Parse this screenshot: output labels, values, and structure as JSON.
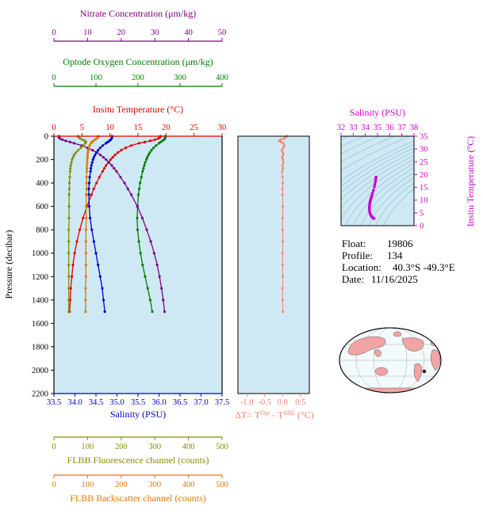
{
  "colors": {
    "nitrate": "#800080",
    "oxygen": "#007d00",
    "temperature": "#e00000",
    "salinity": "#0000cd",
    "fluorescence": "#8b8b00",
    "backscatter": "#e07800",
    "delta": "#f5826e",
    "magenta": "#d100d1",
    "black": "#000000",
    "plot_bg": "#cfe9f4",
    "contour": "#94bfce",
    "map_land": "#f2a3a3",
    "map_ocean": "#f3fafc",
    "map_graticule": "#a8a8a8",
    "map_marker": "#202020"
  },
  "axes": {
    "nitrate": {
      "title": "Nitrate Concentration (μm/kg)",
      "ticks": [
        0,
        10,
        20,
        30,
        40,
        50
      ],
      "range": [
        0,
        50
      ],
      "decimals": 0
    },
    "oxygen": {
      "title": "Optode Oxygen Concentration (μm/kg)",
      "ticks": [
        0,
        100,
        200,
        300,
        400
      ],
      "range": [
        0,
        400
      ],
      "decimals": 0
    },
    "temperature": {
      "title": "Insitu Temperature (°C)",
      "ticks": [
        0,
        5,
        10,
        15,
        20,
        25,
        30
      ],
      "range": [
        0,
        30
      ],
      "decimals": 0
    },
    "salinity": {
      "title": "Salinity (PSU)",
      "ticks": [
        33.5,
        34,
        34.5,
        35,
        35.5,
        36,
        36.5,
        37,
        37.5
      ],
      "range": [
        33.5,
        37.5
      ],
      "decimals": 1
    },
    "fluorescence": {
      "title": "FLBB Fluorescence channel (counts)",
      "ticks": [
        0,
        100,
        200,
        300,
        400,
        500
      ],
      "range": [
        0,
        500
      ],
      "decimals": 0
    },
    "backscatter": {
      "title": "FLBB Backscatter channel (counts)",
      "ticks": [
        0,
        100,
        200,
        300,
        400,
        500
      ],
      "range": [
        0,
        500
      ],
      "decimals": 0
    },
    "pressure": {
      "title": "Pressure (decibar)",
      "ticks": [
        0,
        200,
        400,
        600,
        800,
        1000,
        1200,
        1400,
        1600,
        1800,
        2000,
        2200
      ],
      "range": [
        0,
        2200
      ],
      "decimals": 0
    }
  },
  "delta_axis": {
    "label_parts": [
      "ΔT= T",
      "Opt",
      " - T",
      "SBE",
      " (°C)"
    ],
    "ticks": [
      -1.0,
      -0.5,
      0.0,
      0.5
    ],
    "range": [
      -1.25,
      0.75
    ],
    "decimals": 1
  },
  "ts_panel": {
    "x_title": "Salinity (PSU)",
    "x_ticks": [
      32,
      33,
      34,
      35,
      36,
      37,
      38
    ],
    "x_range": [
      32,
      38
    ],
    "y_title": "Insitu Temperature (°C)",
    "y_ticks": [
      0,
      5,
      10,
      15,
      20,
      25,
      30,
      35
    ],
    "y_range": [
      0,
      35
    ]
  },
  "info": {
    "float_label": "Float:",
    "float_value": "19806",
    "profile_label": "Profile:",
    "profile_value": "134",
    "location_label": "Location:",
    "location_value": "40.3°S  -49.3°E",
    "date_label": "Date:",
    "date_value": "11/16/2025"
  },
  "chart_data": {
    "type": "line",
    "pressure_dbar": [
      0,
      10,
      20,
      30,
      40,
      50,
      60,
      80,
      100,
      120,
      140,
      160,
      180,
      200,
      225,
      250,
      275,
      300,
      350,
      400,
      450,
      500,
      600,
      700,
      800,
      900,
      1000,
      1100,
      1200,
      1300,
      1400,
      1500
    ],
    "series": [
      {
        "name": "Insitu Temperature",
        "units": "°C",
        "axis": "temperature",
        "values": [
          19.0,
          18.9,
          18.6,
          18.0,
          17.2,
          16.2,
          15.2,
          13.8,
          12.8,
          12.0,
          11.4,
          10.9,
          10.5,
          10.1,
          9.7,
          9.3,
          9.0,
          8.7,
          8.1,
          7.6,
          7.1,
          6.7,
          5.9,
          5.2,
          4.6,
          4.1,
          3.7,
          3.4,
          3.2,
          3.0,
          2.9,
          2.8
        ]
      },
      {
        "name": "Optode Oxygen Concentration",
        "units": "μm/kg",
        "axis": "oxygen",
        "values": [
          265,
          265,
          264,
          262,
          258,
          254,
          250,
          243,
          237,
          232,
          228,
          225,
          222,
          220,
          217,
          215,
          213,
          211,
          208,
          205,
          203,
          201,
          199,
          198,
          199,
          202,
          206,
          211,
          217,
          223,
          229,
          234
        ]
      },
      {
        "name": "Nitrate Concentration",
        "units": "μm/kg",
        "axis": "nitrate",
        "values": [
          1.5,
          1.5,
          1.8,
          2.5,
          3.5,
          4.8,
          6.0,
          8.2,
          10.0,
          11.5,
          12.8,
          13.8,
          14.7,
          15.5,
          16.4,
          17.2,
          17.9,
          18.6,
          19.8,
          21.0,
          22.0,
          23.0,
          24.8,
          26.3,
          27.6,
          28.8,
          29.8,
          30.7,
          31.4,
          32.0,
          32.5,
          32.9
        ]
      },
      {
        "name": "Salinity",
        "units": "PSU",
        "axis": "salinity",
        "values": [
          34.88,
          34.88,
          34.87,
          34.85,
          34.82,
          34.78,
          34.74,
          34.66,
          34.6,
          34.55,
          34.51,
          34.48,
          34.45,
          34.43,
          34.41,
          34.39,
          34.38,
          34.37,
          34.35,
          34.34,
          34.33,
          34.33,
          34.34,
          34.36,
          34.4,
          34.45,
          34.5,
          34.55,
          34.6,
          34.65,
          34.68,
          34.71
        ]
      },
      {
        "name": "FLBB Fluorescence channel",
        "units": "counts",
        "axis": "fluorescence",
        "values": [
          72,
          74,
          78,
          85,
          92,
          95,
          93,
          88,
          80,
          72,
          65,
          60,
          57,
          54,
          52,
          50,
          49,
          48,
          47,
          46,
          46,
          45,
          45,
          45,
          44,
          44,
          44,
          44,
          44,
          44,
          44,
          44
        ]
      },
      {
        "name": "FLBB Backscatter channel",
        "units": "counts",
        "axis": "backscatter",
        "values": [
          132,
          130,
          127,
          122,
          117,
          113,
          110,
          106,
          104,
          102,
          101,
          100,
          100,
          99,
          99,
          98,
          98,
          98,
          97,
          97,
          97,
          96,
          96,
          96,
          95,
          95,
          95,
          95,
          95,
          94,
          94,
          94
        ]
      }
    ],
    "delta_T_values": [
      0.12,
      0.07,
      0.04,
      -0.05,
      -0.09,
      -0.04,
      0.02,
      0.05,
      0.02,
      -0.02,
      0.01,
      0.02,
      -0.01,
      0.01,
      0.02,
      0.0,
      0.01,
      -0.01,
      0.0,
      0.01,
      0.0,
      0.0,
      0.01,
      0.0,
      0.0,
      0.01,
      0.0,
      0.0,
      0.01,
      0.0,
      0.0,
      0.01
    ],
    "ts_diagram": {
      "sigma_contours": [
        18,
        19,
        20,
        21,
        22,
        23,
        23.5,
        24,
        24.5,
        25,
        25.5,
        26,
        26.5,
        27,
        27.5,
        28,
        28.5
      ]
    }
  }
}
